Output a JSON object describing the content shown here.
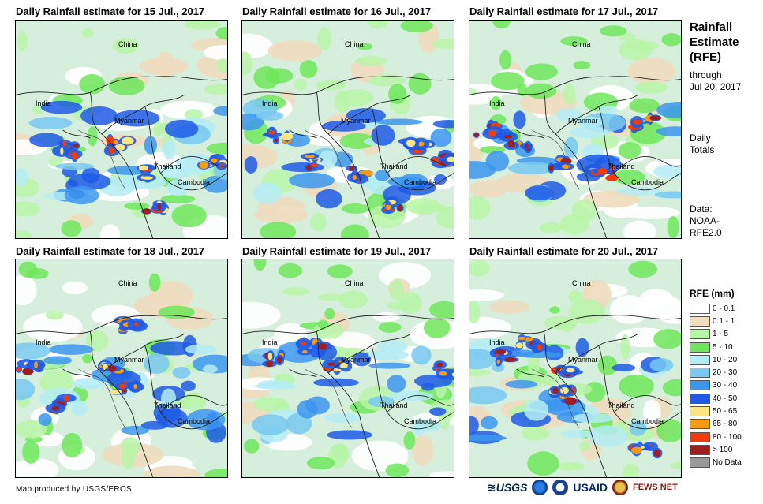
{
  "panels": [
    {
      "title": "Daily Rainfall estimate for 15 Jul., 2017",
      "date": "15 Jul., 2017"
    },
    {
      "title": "Daily Rainfall estimate for 16 Jul., 2017",
      "date": "16 Jul., 2017"
    },
    {
      "title": "Daily Rainfall estimate for 17 Jul., 2017",
      "date": "17 Jul., 2017"
    },
    {
      "title": "Daily Rainfall estimate for 18 Jul., 2017",
      "date": "18 Jul., 2017"
    },
    {
      "title": "Daily Rainfall estimate for 19 Jul., 2017",
      "date": "19 Jul., 2017"
    },
    {
      "title": "Daily Rainfall estimate for 20 Jul., 2017",
      "date": "20 Jul., 2017"
    }
  ],
  "map_labels": {
    "china": "China",
    "india": "India",
    "myanmar": "Myanmar",
    "thailand": "Thailand",
    "cambodia": "Cambodia"
  },
  "side": {
    "title_line1": "Rainfall",
    "title_line2": "Estimate",
    "title_line3": "(RFE)",
    "through": "through",
    "through_date": "Jul 20, 2017",
    "daily": "Daily",
    "totals": "Totals",
    "data_label": "Data:",
    "data_source1": "NOAA-",
    "data_source2": "RFE2.0"
  },
  "legend": {
    "title": "RFE (mm)",
    "items": [
      {
        "label": "0 - 0.1",
        "color": "#ffffff"
      },
      {
        "label": "0.1 - 1",
        "color": "#f0dcbe"
      },
      {
        "label": "1 - 5",
        "color": "#b8f5a8"
      },
      {
        "label": "5 - 10",
        "color": "#6ee65c"
      },
      {
        "label": "10 - 20",
        "color": "#b4ecf5"
      },
      {
        "label": "20 - 30",
        "color": "#78c8f0"
      },
      {
        "label": "30 - 40",
        "color": "#3c96ee"
      },
      {
        "label": "40 - 50",
        "color": "#1e5ae6"
      },
      {
        "label": "50 - 65",
        "color": "#fae682"
      },
      {
        "label": "65 - 80",
        "color": "#f59b14"
      },
      {
        "label": "80 - 100",
        "color": "#f03c0a"
      },
      {
        "label": "> 100",
        "color": "#a01e1e"
      },
      {
        "label": "No Data",
        "color": "#999999"
      }
    ]
  },
  "footer": {
    "credit": "Map produced by USGS/EROS",
    "logo_usgs": "≋USGS",
    "logo_usaid": "USAID",
    "logo_fews": "FEWS NET"
  }
}
